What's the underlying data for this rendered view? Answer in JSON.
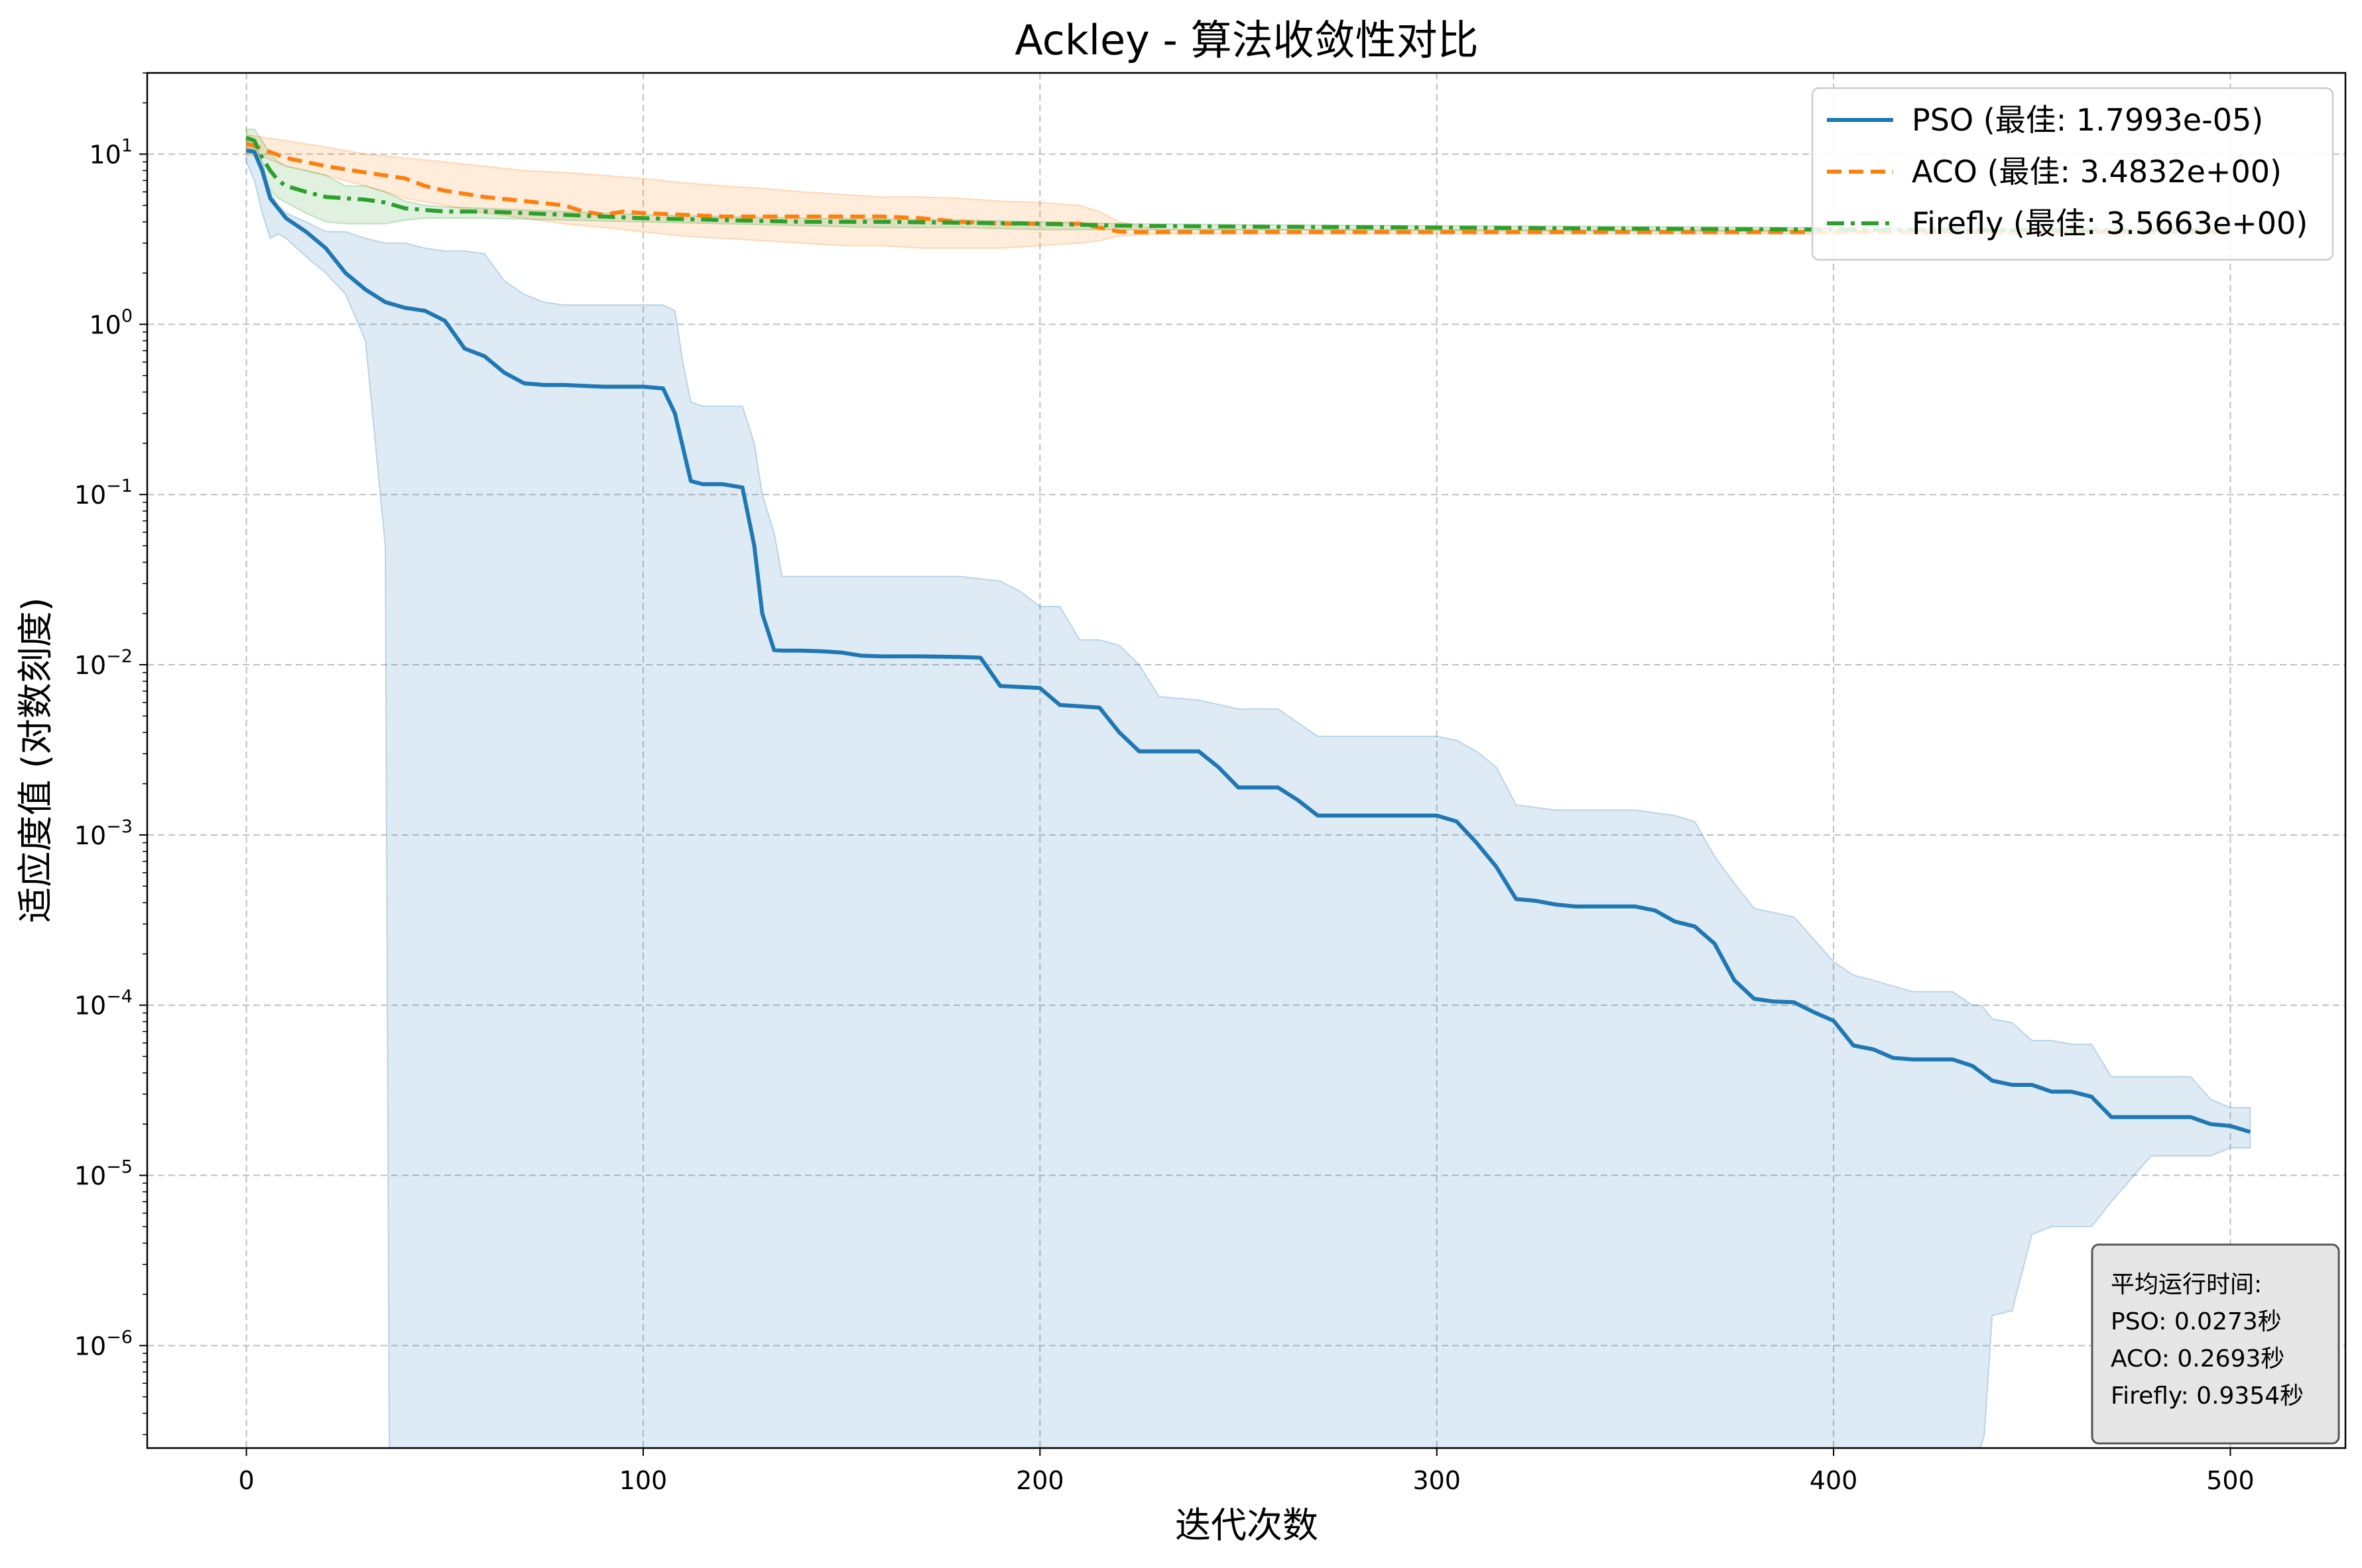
{
  "chart_data": {
    "type": "line",
    "title": "Ackley - 算法收敛性对比",
    "xlabel": "迭代次数",
    "ylabel": "适应度值 (对数刻度)",
    "y_scale": "log",
    "xlim": [
      -25,
      529
    ],
    "ylim": [
      2.5e-07,
      30
    ],
    "x_ticks": [
      0,
      100,
      200,
      300,
      400,
      500
    ],
    "x_tick_labels": [
      "0",
      "100",
      "200",
      "300",
      "400",
      "500"
    ],
    "y_ticks": [
      1e-06,
      1e-05,
      0.0001,
      0.001,
      0.01,
      0.1,
      1,
      10
    ],
    "y_tick_labels": [
      {
        "base": "10",
        "exp": "−6"
      },
      {
        "base": "10",
        "exp": "−5"
      },
      {
        "base": "10",
        "exp": "−4"
      },
      {
        "base": "10",
        "exp": "−3"
      },
      {
        "base": "10",
        "exp": "−2"
      },
      {
        "base": "10",
        "exp": "−1"
      },
      {
        "base": "10",
        "exp": "0"
      },
      {
        "base": "10",
        "exp": "1"
      }
    ],
    "grid": true,
    "legend_position": "top-right",
    "series": [
      {
        "name": "PSO (最佳: 1.7993e-05)",
        "color": "#1f77b4",
        "linestyle": "solid",
        "x": [
          0,
          2,
          4,
          6,
          10,
          15,
          20,
          25,
          30,
          35,
          40,
          45,
          50,
          55,
          60,
          65,
          70,
          75,
          80,
          90,
          100,
          105,
          108,
          112,
          115,
          120,
          125,
          128,
          130,
          133,
          135,
          140,
          145,
          150,
          155,
          160,
          170,
          180,
          185,
          190,
          195,
          200,
          205,
          210,
          215,
          220,
          225,
          230,
          240,
          245,
          250,
          255,
          260,
          265,
          270,
          280,
          290,
          300,
          305,
          310,
          315,
          320,
          325,
          330,
          335,
          340,
          345,
          350,
          355,
          360,
          365,
          370,
          375,
          380,
          385,
          390,
          395,
          400,
          405,
          410,
          415,
          420,
          430,
          435,
          440,
          445,
          450,
          455,
          460,
          465,
          470,
          480,
          490,
          495,
          500,
          505
        ],
        "y": [
          10.5,
          10.3,
          8.0,
          5.5,
          4.2,
          3.5,
          2.8,
          2.0,
          1.6,
          1.35,
          1.25,
          1.2,
          1.05,
          0.72,
          0.65,
          0.52,
          0.45,
          0.44,
          0.44,
          0.43,
          0.43,
          0.42,
          0.3,
          0.12,
          0.115,
          0.115,
          0.11,
          0.05,
          0.02,
          0.0122,
          0.0121,
          0.0121,
          0.012,
          0.0118,
          0.0113,
          0.0112,
          0.0112,
          0.0111,
          0.011,
          0.0075,
          0.0074,
          0.0073,
          0.0058,
          0.0057,
          0.0056,
          0.004,
          0.0031,
          0.0031,
          0.0031,
          0.0025,
          0.0019,
          0.0019,
          0.0019,
          0.0016,
          0.0013,
          0.0013,
          0.0013,
          0.0013,
          0.0012,
          0.0009,
          0.00065,
          0.00042,
          0.00041,
          0.00039,
          0.00038,
          0.00038,
          0.00038,
          0.00038,
          0.00036,
          0.00031,
          0.00029,
          0.00023,
          0.00014,
          0.000109,
          0.000105,
          0.000104,
          9.1e-05,
          8.1e-05,
          5.8e-05,
          5.5e-05,
          4.9e-05,
          4.8e-05,
          4.8e-05,
          4.4e-05,
          3.6e-05,
          3.4e-05,
          3.4e-05,
          3.1e-05,
          3.1e-05,
          2.9e-05,
          2.2e-05,
          2.2e-05,
          2.2e-05,
          2e-05,
          1.95e-05,
          1.8e-05
        ]
      },
      {
        "name": "ACO (最佳: 3.4832e+00)",
        "color": "#ff7f0e",
        "linestyle": "dashed",
        "x": [
          0,
          2,
          5,
          10,
          20,
          30,
          40,
          45,
          50,
          60,
          70,
          80,
          85,
          90,
          95,
          100,
          110,
          120,
          130,
          140,
          150,
          160,
          170,
          180,
          190,
          200,
          210,
          215,
          220,
          225,
          230,
          260,
          300,
          350,
          400,
          450,
          500
        ],
        "y": [
          11.5,
          11.2,
          10.5,
          9.5,
          8.5,
          7.8,
          7.2,
          6.5,
          6.1,
          5.6,
          5.3,
          5.0,
          4.6,
          4.4,
          4.6,
          4.5,
          4.4,
          4.3,
          4.3,
          4.3,
          4.3,
          4.3,
          4.2,
          4.0,
          3.9,
          3.9,
          3.9,
          3.7,
          3.5,
          3.48,
          3.48,
          3.48,
          3.48,
          3.48,
          3.48,
          3.48,
          3.48
        ]
      },
      {
        "name": "Firefly (最佳: 3.5663e+00)",
        "color": "#2ca02c",
        "linestyle": "dashdot",
        "x": [
          0,
          2,
          4,
          6,
          8,
          10,
          15,
          20,
          25,
          30,
          35,
          40,
          45,
          50,
          60,
          80,
          100,
          120,
          140,
          160,
          180,
          200,
          220,
          250,
          300,
          350,
          400,
          450,
          500
        ],
        "y": [
          12.5,
          12.0,
          9.5,
          8.0,
          7.0,
          6.5,
          6.0,
          5.6,
          5.5,
          5.4,
          5.2,
          4.8,
          4.7,
          4.6,
          4.6,
          4.4,
          4.2,
          4.1,
          4.0,
          4.0,
          3.95,
          3.9,
          3.8,
          3.75,
          3.7,
          3.65,
          3.6,
          3.58,
          3.57
        ]
      }
    ],
    "bands": [
      {
        "series": "PSO (最佳: 1.7993e-05)",
        "color": "#1f77b4",
        "alpha": 0.15,
        "x": [
          0,
          2,
          4,
          6,
          8,
          10,
          15,
          20,
          25,
          30,
          35,
          36,
          40,
          45,
          50,
          55,
          60,
          65,
          70,
          75,
          80,
          90,
          100,
          105,
          108,
          110,
          112,
          115,
          120,
          125,
          128,
          130,
          133,
          135,
          140,
          150,
          160,
          170,
          180,
          190,
          195,
          200,
          205,
          210,
          215,
          220,
          225,
          230,
          240,
          250,
          260,
          270,
          280,
          290,
          300,
          305,
          310,
          315,
          320,
          330,
          340,
          350,
          360,
          365,
          370,
          375,
          380,
          390,
          400,
          405,
          410,
          420,
          430,
          435,
          437,
          438,
          440,
          445,
          450,
          455,
          460,
          465,
          470,
          480,
          490,
          495,
          500,
          505
        ],
        "upper": [
          12,
          12,
          9,
          6,
          5,
          4.5,
          4,
          3.5,
          3.5,
          3.2,
          3.0,
          3.0,
          3.0,
          2.8,
          2.7,
          2.7,
          2.6,
          1.8,
          1.5,
          1.35,
          1.3,
          1.3,
          1.3,
          1.3,
          1.2,
          0.6,
          0.35,
          0.33,
          0.33,
          0.33,
          0.2,
          0.1,
          0.06,
          0.033,
          0.033,
          0.033,
          0.033,
          0.033,
          0.033,
          0.031,
          0.027,
          0.022,
          0.022,
          0.014,
          0.014,
          0.013,
          0.01,
          0.0065,
          0.0062,
          0.0055,
          0.0055,
          0.0038,
          0.0038,
          0.0038,
          0.0038,
          0.0036,
          0.0031,
          0.0025,
          0.0015,
          0.0014,
          0.0014,
          0.0014,
          0.0013,
          0.0012,
          0.00075,
          0.00052,
          0.00037,
          0.00033,
          0.00018,
          0.00015,
          0.00014,
          0.00012,
          0.00012,
          0.0001,
          0.0001,
          9.5e-05,
          8.3e-05,
          7.9e-05,
          6.2e-05,
          6.2e-05,
          5.9e-05,
          5.9e-05,
          3.8e-05,
          3.8e-05,
          3.8e-05,
          2.8e-05,
          2.5e-05,
          2.5e-05
        ],
        "lower": [
          9,
          7,
          4.5,
          3.2,
          3.4,
          3.2,
          2.5,
          2.0,
          1.5,
          0.8,
          0.05,
          2.5e-07,
          2.5e-07,
          2.5e-07,
          2.5e-07,
          2.5e-07,
          2.5e-07,
          2.5e-07,
          2.5e-07,
          2.5e-07,
          2.5e-07,
          2.5e-07,
          2.5e-07,
          2.5e-07,
          2.5e-07,
          2.5e-07,
          2.5e-07,
          2.5e-07,
          2.5e-07,
          2.5e-07,
          2.5e-07,
          2.5e-07,
          2.5e-07,
          2.5e-07,
          2.5e-07,
          2.5e-07,
          2.5e-07,
          2.5e-07,
          2.5e-07,
          2.5e-07,
          2.5e-07,
          2.5e-07,
          2.5e-07,
          2.5e-07,
          2.5e-07,
          2.5e-07,
          2.5e-07,
          2.5e-07,
          2.5e-07,
          2.5e-07,
          2.5e-07,
          2.5e-07,
          2.5e-07,
          2.5e-07,
          2.5e-07,
          2.5e-07,
          2.5e-07,
          2.5e-07,
          2.5e-07,
          2.5e-07,
          2.5e-07,
          2.5e-07,
          2.5e-07,
          2.5e-07,
          2.5e-07,
          2.5e-07,
          2.5e-07,
          2.5e-07,
          2.5e-07,
          2.5e-07,
          2.5e-07,
          2.5e-07,
          2.5e-07,
          2.5e-07,
          2.5e-07,
          3e-07,
          1.5e-06,
          1.6e-06,
          4.5e-06,
          5e-06,
          5e-06,
          5e-06,
          7e-06,
          1.3e-05,
          1.3e-05,
          1.3e-05,
          1.45e-05,
          1.45e-05
        ]
      },
      {
        "series": "ACO (最佳: 3.4832e+00)",
        "color": "#ff7f0e",
        "alpha": 0.15,
        "x": [
          0,
          5,
          10,
          20,
          30,
          40,
          50,
          60,
          70,
          80,
          90,
          100,
          110,
          120,
          130,
          140,
          150,
          160,
          170,
          180,
          190,
          200,
          210,
          215,
          220,
          230,
          260,
          300,
          350,
          400,
          450,
          500
        ],
        "upper": [
          13,
          12.5,
          12,
          11,
          10,
          9.5,
          9,
          8.5,
          8,
          7.8,
          7.5,
          7.2,
          6.8,
          6.5,
          6.3,
          6,
          5.8,
          5.6,
          5.6,
          5.5,
          5.3,
          5.2,
          5,
          4.6,
          4,
          3.6,
          3.6,
          3.6,
          3.6,
          3.6,
          3.6,
          3.6
        ],
        "lower": [
          10,
          9.5,
          8.5,
          7.5,
          6.5,
          5.5,
          5,
          4.5,
          4.2,
          3.9,
          3.7,
          3.5,
          3.3,
          3.2,
          3.1,
          3.0,
          2.9,
          2.9,
          2.8,
          2.8,
          2.8,
          2.9,
          3.0,
          3.1,
          3.3,
          3.4,
          3.4,
          3.4,
          3.4,
          3.4,
          3.4,
          3.4
        ]
      },
      {
        "series": "Firefly (最佳: 3.5663e+00)",
        "color": "#2ca02c",
        "alpha": 0.15,
        "x": [
          0,
          2,
          4,
          6,
          8,
          10,
          15,
          20,
          25,
          30,
          35,
          40,
          45,
          50,
          60,
          80,
          100,
          120,
          140,
          160,
          180,
          200,
          220,
          250,
          300,
          350,
          400,
          450,
          500
        ],
        "upper": [
          14,
          14,
          12,
          10,
          9,
          8.5,
          8,
          7.5,
          6.5,
          6.5,
          6,
          5.3,
          5,
          4.9,
          4.8,
          4.6,
          4.4,
          4.3,
          4.2,
          4.15,
          4.1,
          4.0,
          3.9,
          3.85,
          3.8,
          3.75,
          3.7,
          3.65,
          3.62
        ],
        "lower": [
          11,
          10.5,
          7.5,
          6.2,
          5.5,
          5.2,
          4.5,
          4.0,
          3.9,
          3.9,
          3.9,
          4.1,
          4.2,
          4.2,
          4.2,
          4.1,
          4.0,
          3.9,
          3.8,
          3.7,
          3.7,
          3.6,
          3.6,
          3.6,
          3.55,
          3.52,
          3.5,
          3.5,
          3.5
        ]
      }
    ]
  },
  "runtime_box": {
    "lines": [
      "平均运行时间:",
      "PSO: 0.0273秒",
      "ACO: 0.2693秒",
      "Firefly: 0.9354秒"
    ]
  }
}
